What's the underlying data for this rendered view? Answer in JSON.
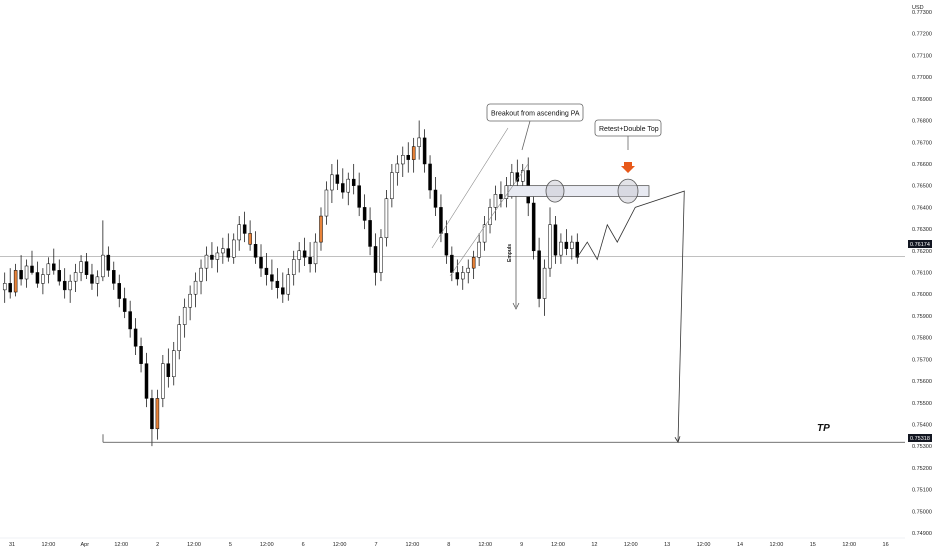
{
  "axis": {
    "currency": "USD",
    "price_ticks": [
      "0.77300",
      "0.77200",
      "0.77100",
      "0.77000",
      "0.76900",
      "0.76800",
      "0.76700",
      "0.76600",
      "0.76500",
      "0.76400",
      "0.76300",
      "0.76200",
      "0.76100",
      "0.76000",
      "0.75900",
      "0.75800",
      "0.75700",
      "0.75600",
      "0.75500",
      "0.75400",
      "0.75300",
      "0.75200",
      "0.75100",
      "0.75000",
      "0.74900"
    ],
    "time_ticks": [
      "31",
      "12:00",
      "Apr",
      "12:00",
      "2",
      "12:00",
      "5",
      "12:00",
      "6",
      "12:00",
      "7",
      "12:00",
      "8",
      "12:00",
      "9",
      "12:00",
      "12",
      "12:00",
      "13",
      "12:00",
      "14",
      "12:00",
      "15",
      "12:00",
      "16"
    ]
  },
  "price_tags": {
    "current": "0.76174",
    "tp": "0.75318"
  },
  "annotations": {
    "breakout_callout": "Breakout from ascending PA",
    "retest_callout": "Retest+Double Top",
    "impulse_label": "Empuls",
    "tp_label": "TP"
  },
  "colors": {
    "candle_up": "#ffffff",
    "candle_down": "#000000",
    "candle_highlight": "#e8833a",
    "wick": "#000000",
    "current_price_line": "#b8b8b8",
    "zone_fill": "#e8eaf2",
    "arrow_orange": "#e8591a",
    "price_tag_bg": "#131722"
  },
  "chart_data": {
    "type": "candlestick",
    "timeframe_note": "",
    "ylim": [
      0.749,
      0.773
    ],
    "current_price": 0.76174,
    "tp_level": 0.75318,
    "resistance_zone": [
      0.7645,
      0.765
    ],
    "ohlc": [
      [
        0.7602,
        0.761,
        0.7596,
        0.7605
      ],
      [
        0.7605,
        0.7612,
        0.7598,
        0.7601
      ],
      [
        0.7601,
        0.7614,
        0.7599,
        0.7611
      ],
      [
        0.7611,
        0.7618,
        0.7604,
        0.7607
      ],
      [
        0.7607,
        0.7616,
        0.7603,
        0.7613
      ],
      [
        0.7613,
        0.762,
        0.7609,
        0.761
      ],
      [
        0.761,
        0.7615,
        0.7603,
        0.7605
      ],
      [
        0.7605,
        0.7612,
        0.76,
        0.7609
      ],
      [
        0.7609,
        0.7617,
        0.7605,
        0.7614
      ],
      [
        0.7614,
        0.7621,
        0.7609,
        0.7611
      ],
      [
        0.7611,
        0.7616,
        0.7604,
        0.7606
      ],
      [
        0.7606,
        0.7612,
        0.7598,
        0.7602
      ],
      [
        0.7602,
        0.7609,
        0.7596,
        0.7606
      ],
      [
        0.7606,
        0.7614,
        0.7601,
        0.761
      ],
      [
        0.761,
        0.7618,
        0.7606,
        0.7615
      ],
      [
        0.7615,
        0.7619,
        0.7607,
        0.7609
      ],
      [
        0.7609,
        0.7614,
        0.7602,
        0.7605
      ],
      [
        0.7605,
        0.7611,
        0.7599,
        0.7608
      ],
      [
        0.7608,
        0.7634,
        0.7606,
        0.7618
      ],
      [
        0.7618,
        0.7622,
        0.7608,
        0.7611
      ],
      [
        0.7611,
        0.7615,
        0.7602,
        0.7605
      ],
      [
        0.7605,
        0.7609,
        0.7594,
        0.7598
      ],
      [
        0.7598,
        0.7603,
        0.7589,
        0.7592
      ],
      [
        0.7592,
        0.7597,
        0.758,
        0.7584
      ],
      [
        0.7584,
        0.7589,
        0.7572,
        0.7576
      ],
      [
        0.7576,
        0.758,
        0.7564,
        0.7568
      ],
      [
        0.7568,
        0.7573,
        0.7548,
        0.7552
      ],
      [
        0.7552,
        0.7556,
        0.753,
        0.7538
      ],
      [
        0.7538,
        0.7556,
        0.7533,
        0.7552
      ],
      [
        0.7552,
        0.7572,
        0.7548,
        0.7568
      ],
      [
        0.7568,
        0.7575,
        0.7557,
        0.7562
      ],
      [
        0.7562,
        0.7578,
        0.7558,
        0.7574
      ],
      [
        0.7574,
        0.759,
        0.757,
        0.7586
      ],
      [
        0.7586,
        0.7598,
        0.758,
        0.7594
      ],
      [
        0.7594,
        0.7604,
        0.7588,
        0.76
      ],
      [
        0.76,
        0.761,
        0.7594,
        0.7606
      ],
      [
        0.7606,
        0.7616,
        0.76,
        0.7612
      ],
      [
        0.7612,
        0.7622,
        0.7606,
        0.7618
      ],
      [
        0.7618,
        0.7624,
        0.7612,
        0.7616
      ],
      [
        0.7616,
        0.7622,
        0.761,
        0.7619
      ],
      [
        0.7619,
        0.7626,
        0.7614,
        0.7621
      ],
      [
        0.7621,
        0.7628,
        0.7615,
        0.7617
      ],
      [
        0.7617,
        0.7628,
        0.7614,
        0.7625
      ],
      [
        0.7625,
        0.7636,
        0.762,
        0.7632
      ],
      [
        0.7632,
        0.7638,
        0.7624,
        0.7628
      ],
      [
        0.7628,
        0.7634,
        0.762,
        0.7623
      ],
      [
        0.7623,
        0.7629,
        0.7614,
        0.7617
      ],
      [
        0.7617,
        0.7623,
        0.7608,
        0.7612
      ],
      [
        0.7612,
        0.7619,
        0.7604,
        0.7609
      ],
      [
        0.7609,
        0.7616,
        0.7602,
        0.7606
      ],
      [
        0.7606,
        0.7612,
        0.7598,
        0.7603
      ],
      [
        0.7603,
        0.761,
        0.7596,
        0.76
      ],
      [
        0.76,
        0.7612,
        0.7597,
        0.7609
      ],
      [
        0.7609,
        0.762,
        0.7604,
        0.7616
      ],
      [
        0.7616,
        0.7624,
        0.761,
        0.762
      ],
      [
        0.762,
        0.7626,
        0.7613,
        0.7617
      ],
      [
        0.7617,
        0.7624,
        0.761,
        0.7614
      ],
      [
        0.7614,
        0.7628,
        0.761,
        0.7624
      ],
      [
        0.7624,
        0.764,
        0.762,
        0.7636
      ],
      [
        0.7636,
        0.7652,
        0.7632,
        0.7648
      ],
      [
        0.7648,
        0.766,
        0.7642,
        0.7655
      ],
      [
        0.7655,
        0.7662,
        0.7648,
        0.7651
      ],
      [
        0.7651,
        0.7658,
        0.7644,
        0.7647
      ],
      [
        0.7647,
        0.7656,
        0.7641,
        0.7653
      ],
      [
        0.7653,
        0.766,
        0.7646,
        0.765
      ],
      [
        0.765,
        0.7656,
        0.7636,
        0.764
      ],
      [
        0.764,
        0.7646,
        0.763,
        0.7634
      ],
      [
        0.7634,
        0.764,
        0.7618,
        0.7622
      ],
      [
        0.7622,
        0.7628,
        0.7604,
        0.761
      ],
      [
        0.761,
        0.763,
        0.7606,
        0.7626
      ],
      [
        0.7626,
        0.7648,
        0.7622,
        0.7644
      ],
      [
        0.7644,
        0.766,
        0.764,
        0.7656
      ],
      [
        0.7656,
        0.7664,
        0.765,
        0.766
      ],
      [
        0.766,
        0.7668,
        0.7654,
        0.7664
      ],
      [
        0.7664,
        0.767,
        0.7656,
        0.7662
      ],
      [
        0.7662,
        0.7672,
        0.7656,
        0.7668
      ],
      [
        0.7668,
        0.768,
        0.7662,
        0.7672
      ],
      [
        0.7672,
        0.7676,
        0.7656,
        0.766
      ],
      [
        0.766,
        0.7664,
        0.7644,
        0.7648
      ],
      [
        0.7648,
        0.7654,
        0.7636,
        0.764
      ],
      [
        0.764,
        0.7646,
        0.7624,
        0.7628
      ],
      [
        0.7628,
        0.7634,
        0.7614,
        0.7618
      ],
      [
        0.7618,
        0.7622,
        0.7606,
        0.761
      ],
      [
        0.761,
        0.7616,
        0.7604,
        0.7607
      ],
      [
        0.7607,
        0.7613,
        0.7602,
        0.761
      ],
      [
        0.761,
        0.7616,
        0.7605,
        0.7612
      ],
      [
        0.7612,
        0.762,
        0.7607,
        0.7617
      ],
      [
        0.7617,
        0.7628,
        0.7613,
        0.7624
      ],
      [
        0.7624,
        0.7636,
        0.762,
        0.7632
      ],
      [
        0.7632,
        0.7644,
        0.7628,
        0.764
      ],
      [
        0.764,
        0.765,
        0.7634,
        0.7646
      ],
      [
        0.7646,
        0.7652,
        0.764,
        0.7644
      ],
      [
        0.7644,
        0.7654,
        0.764,
        0.765
      ],
      [
        0.765,
        0.766,
        0.7644,
        0.7656
      ],
      [
        0.7656,
        0.7662,
        0.7648,
        0.7652
      ],
      [
        0.7652,
        0.766,
        0.7647,
        0.7657
      ],
      [
        0.7657,
        0.7663,
        0.7636,
        0.7642
      ],
      [
        0.7642,
        0.7646,
        0.7616,
        0.762
      ],
      [
        0.762,
        0.7626,
        0.7594,
        0.7598
      ],
      [
        0.7598,
        0.7616,
        0.759,
        0.7612
      ],
      [
        0.7612,
        0.764,
        0.7608,
        0.7632
      ],
      [
        0.7632,
        0.7636,
        0.7614,
        0.7618
      ],
      [
        0.7618,
        0.7628,
        0.7614,
        0.7624
      ],
      [
        0.7624,
        0.763,
        0.7618,
        0.7621
      ],
      [
        0.7621,
        0.7627,
        0.7616,
        0.7624
      ],
      [
        0.7624,
        0.7628,
        0.7614,
        0.7617
      ]
    ],
    "highlighted_candles": [
      2,
      28,
      45,
      58,
      75,
      86
    ],
    "projected_path": [
      [
        0.7617,
        0.7624
      ],
      [
        0.7624,
        0.7616
      ],
      [
        0.7616,
        0.7632
      ],
      [
        0.7632,
        0.7624
      ],
      [
        0.7624,
        0.764
      ],
      [
        0.764,
        0.76475
      ],
      [
        0.76475,
        0.75318
      ]
    ]
  }
}
